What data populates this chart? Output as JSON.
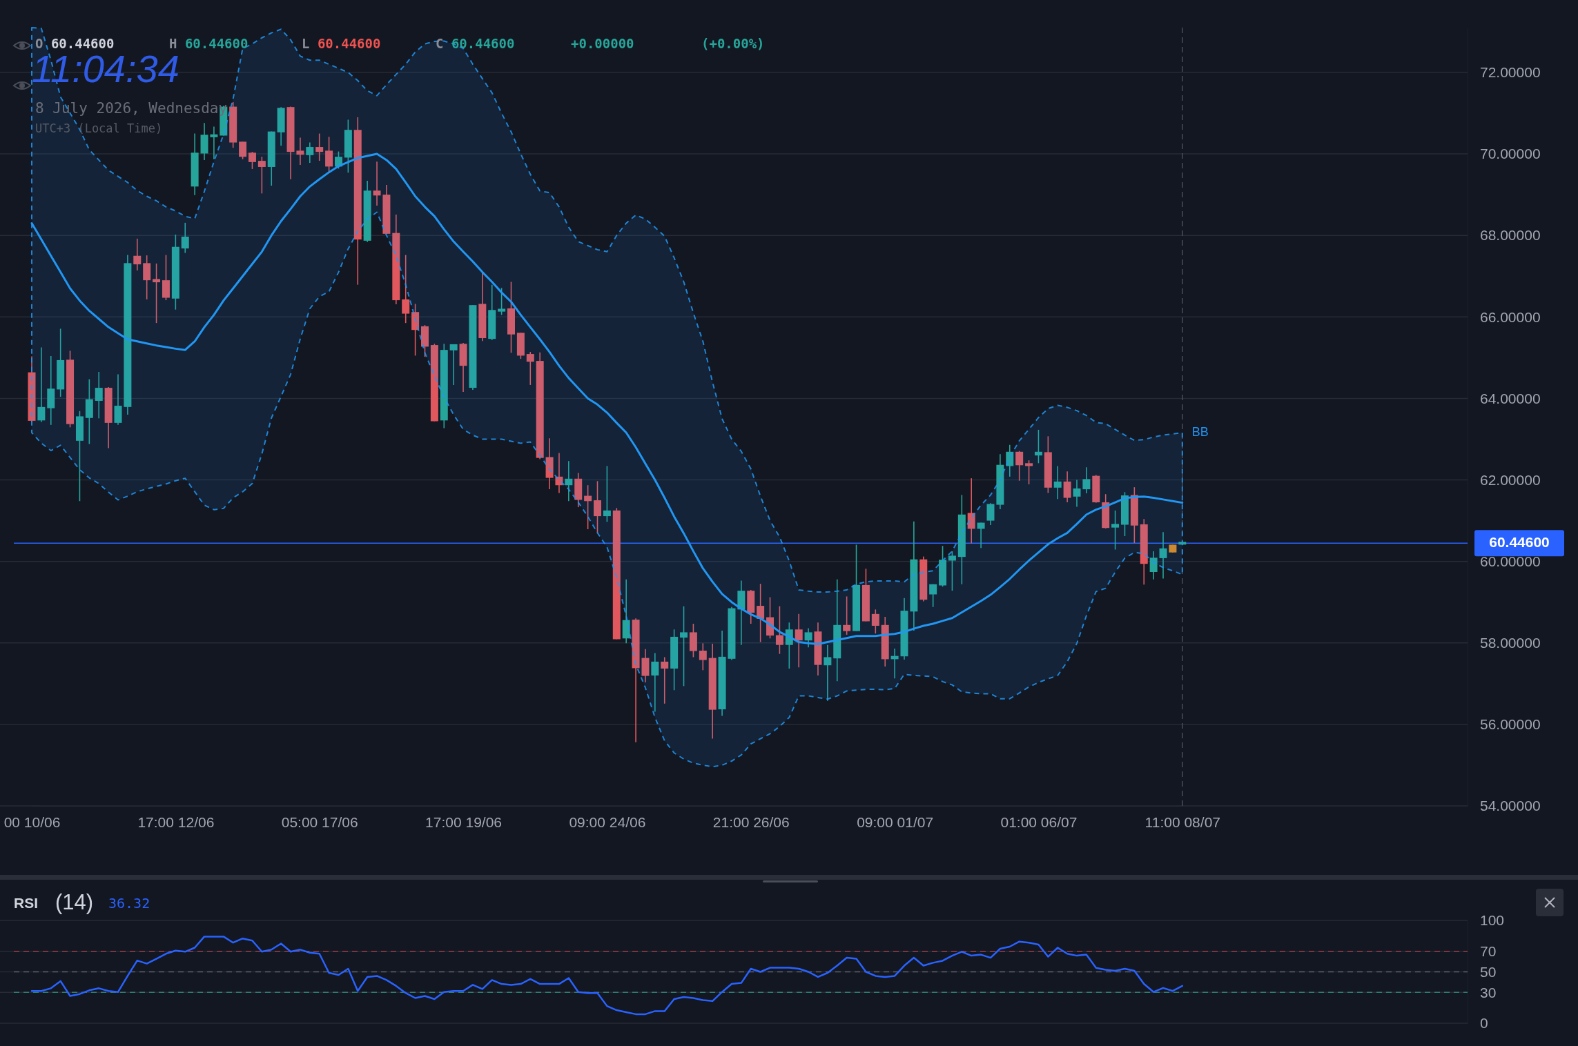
{
  "chart_data": [
    {
      "type": "candlestick",
      "categories": [
        "00 10/06",
        null,
        null,
        null,
        null,
        null,
        null,
        null,
        null,
        null,
        null,
        null,
        null,
        null,
        null,
        "17:00 12/06",
        null,
        null,
        null,
        null,
        null,
        null,
        null,
        null,
        null,
        null,
        null,
        null,
        null,
        null,
        "05:00 17/06",
        null,
        null,
        null,
        null,
        null,
        null,
        null,
        null,
        null,
        null,
        null,
        null,
        null,
        null,
        "17:00 19/06",
        null,
        null,
        null,
        null,
        null,
        null,
        null,
        null,
        null,
        null,
        null,
        null,
        null,
        null,
        "09:00 24/06",
        null,
        null,
        null,
        null,
        null,
        null,
        null,
        null,
        null,
        null,
        null,
        null,
        null,
        null,
        "21:00 26/06",
        null,
        null,
        null,
        null,
        null,
        null,
        null,
        null,
        null,
        null,
        null,
        null,
        null,
        null,
        "09:00 01/07",
        null,
        null,
        null,
        null,
        null,
        null,
        null,
        null,
        null,
        null,
        null,
        null,
        null,
        null,
        "01:00 06/07",
        null,
        null,
        null,
        null,
        null,
        null,
        null,
        null,
        null,
        null,
        null,
        null,
        null,
        null,
        "11:00 08/07"
      ],
      "ohlc": [
        [
          64.64,
          65.03,
          63.42,
          63.45
        ],
        [
          63.46,
          65.25,
          63.42,
          63.79
        ],
        [
          63.76,
          65.04,
          63.35,
          64.24
        ],
        [
          64.22,
          65.71,
          64.04,
          64.94
        ],
        [
          64.95,
          65.17,
          63.29,
          63.37
        ],
        [
          62.96,
          63.69,
          61.48,
          63.56
        ],
        [
          63.52,
          64.47,
          62.88,
          63.98
        ],
        [
          63.94,
          64.65,
          63.51,
          64.26
        ],
        [
          64.26,
          64.28,
          62.78,
          63.4
        ],
        [
          63.4,
          64.59,
          63.35,
          63.82
        ],
        [
          63.79,
          67.52,
          63.6,
          67.32
        ],
        [
          67.5,
          67.92,
          67.14,
          67.29
        ],
        [
          67.32,
          67.51,
          66.43,
          66.9
        ],
        [
          66.93,
          67.31,
          65.85,
          66.85
        ],
        [
          66.9,
          67.52,
          66.41,
          66.47
        ],
        [
          66.45,
          68.02,
          66.18,
          67.72
        ],
        [
          67.68,
          68.31,
          67.57,
          67.97
        ],
        [
          69.2,
          70.5,
          68.99,
          70.03
        ],
        [
          70.01,
          70.76,
          69.85,
          70.47
        ],
        [
          70.41,
          70.67,
          69.87,
          70.48
        ],
        [
          70.45,
          71.18,
          70.45,
          71.16
        ],
        [
          71.16,
          71.27,
          70.15,
          70.28
        ],
        [
          70.3,
          70.3,
          69.87,
          69.93
        ],
        [
          70.03,
          70.05,
          69.63,
          69.8
        ],
        [
          69.83,
          69.93,
          69.03,
          69.68
        ],
        [
          69.68,
          70.55,
          69.22,
          70.55
        ],
        [
          70.53,
          71.15,
          70.2,
          71.13
        ],
        [
          71.15,
          71.16,
          69.38,
          70.05
        ],
        [
          70.08,
          70.4,
          69.73,
          69.98
        ],
        [
          69.97,
          70.28,
          69.78,
          70.17
        ],
        [
          70.17,
          70.5,
          69.83,
          70.05
        ],
        [
          70.08,
          70.42,
          69.54,
          69.69
        ],
        [
          69.69,
          70.06,
          69.64,
          69.93
        ],
        [
          69.91,
          70.84,
          69.54,
          70.59
        ],
        [
          70.59,
          70.9,
          66.79,
          67.9
        ],
        [
          67.87,
          69.34,
          67.84,
          69.1
        ],
        [
          69.1,
          69.81,
          68.73,
          68.98
        ],
        [
          69.0,
          69.24,
          68.04,
          68.04
        ],
        [
          68.06,
          68.51,
          66.31,
          66.41
        ],
        [
          66.43,
          67.52,
          65.85,
          66.08
        ],
        [
          66.12,
          66.32,
          65.05,
          65.68
        ],
        [
          65.77,
          65.8,
          65.02,
          65.27
        ],
        [
          65.31,
          65.34,
          63.44,
          63.44
        ],
        [
          63.46,
          65.34,
          63.27,
          65.19
        ],
        [
          65.18,
          65.33,
          64.33,
          65.33
        ],
        [
          65.34,
          65.36,
          64.16,
          64.8
        ],
        [
          64.26,
          66.29,
          64.21,
          66.29
        ],
        [
          66.32,
          67.1,
          65.41,
          65.48
        ],
        [
          65.46,
          66.79,
          65.43,
          66.17
        ],
        [
          66.13,
          66.71,
          66.05,
          66.2
        ],
        [
          66.21,
          66.86,
          65.12,
          65.57
        ],
        [
          65.61,
          65.61,
          64.97,
          65.05
        ],
        [
          65.09,
          65.14,
          64.33,
          64.9
        ],
        [
          64.92,
          65.13,
          62.51,
          62.54
        ],
        [
          62.56,
          63.02,
          61.77,
          62.05
        ],
        [
          62.08,
          62.66,
          61.68,
          61.87
        ],
        [
          61.87,
          62.46,
          61.48,
          62.03
        ],
        [
          62.03,
          62.17,
          61.33,
          61.51
        ],
        [
          61.61,
          61.87,
          60.79,
          61.48
        ],
        [
          61.5,
          61.97,
          60.69,
          61.11
        ],
        [
          61.11,
          62.34,
          60.97,
          61.25
        ],
        [
          61.25,
          61.31,
          58.09,
          58.09
        ],
        [
          58.11,
          59.56,
          57.99,
          58.56
        ],
        [
          58.57,
          58.6,
          55.56,
          57.38
        ],
        [
          57.63,
          57.85,
          57.03,
          57.19
        ],
        [
          57.2,
          57.75,
          56.31,
          57.54
        ],
        [
          57.54,
          57.65,
          56.51,
          57.37
        ],
        [
          57.37,
          58.33,
          56.84,
          58.15
        ],
        [
          58.13,
          58.9,
          56.94,
          58.26
        ],
        [
          58.26,
          58.47,
          57.65,
          57.8
        ],
        [
          57.81,
          57.99,
          57.33,
          57.58
        ],
        [
          57.63,
          57.98,
          55.65,
          56.36
        ],
        [
          56.37,
          58.3,
          56.21,
          57.66
        ],
        [
          57.61,
          58.88,
          57.58,
          58.85
        ],
        [
          58.82,
          59.53,
          57.95,
          59.28
        ],
        [
          59.28,
          59.3,
          58.47,
          58.74
        ],
        [
          58.91,
          59.45,
          58.02,
          58.59
        ],
        [
          58.63,
          59.12,
          58.11,
          58.18
        ],
        [
          58.19,
          58.9,
          57.73,
          57.95
        ],
        [
          57.95,
          58.5,
          57.37,
          58.33
        ],
        [
          58.33,
          58.71,
          57.4,
          58.06
        ],
        [
          58.06,
          58.36,
          57.89,
          58.26
        ],
        [
          58.28,
          58.5,
          57.2,
          57.46
        ],
        [
          57.45,
          57.95,
          56.58,
          57.65
        ],
        [
          57.62,
          59.56,
          57.06,
          58.44
        ],
        [
          58.44,
          59.14,
          58.2,
          58.29
        ],
        [
          58.29,
          60.41,
          58.29,
          59.42
        ],
        [
          59.42,
          59.82,
          58.53,
          58.53
        ],
        [
          58.71,
          58.82,
          58.23,
          58.42
        ],
        [
          58.44,
          58.64,
          57.42,
          57.6
        ],
        [
          57.6,
          57.86,
          57.13,
          57.68
        ],
        [
          57.67,
          59.1,
          57.59,
          58.79
        ],
        [
          58.77,
          60.98,
          58.3,
          60.05
        ],
        [
          60.05,
          60.12,
          59.02,
          59.06
        ],
        [
          59.19,
          59.44,
          58.88,
          59.44
        ],
        [
          59.41,
          60.38,
          59.38,
          60.04
        ],
        [
          60.02,
          60.25,
          59.28,
          60.14
        ],
        [
          60.11,
          61.63,
          59.44,
          61.15
        ],
        [
          61.19,
          62.04,
          60.44,
          60.8
        ],
        [
          60.8,
          60.95,
          60.33,
          60.95
        ],
        [
          61.0,
          61.43,
          60.89,
          61.41
        ],
        [
          61.39,
          62.63,
          61.28,
          62.37
        ],
        [
          62.34,
          62.86,
          62.08,
          62.69
        ],
        [
          62.69,
          62.71,
          61.98,
          62.36
        ],
        [
          62.41,
          62.48,
          61.89,
          62.34
        ],
        [
          62.6,
          63.23,
          62.41,
          62.69
        ],
        [
          62.68,
          63.07,
          61.68,
          61.81
        ],
        [
          61.81,
          62.34,
          61.53,
          61.96
        ],
        [
          61.96,
          62.21,
          61.45,
          61.56
        ],
        [
          61.59,
          62.0,
          61.34,
          61.79
        ],
        [
          61.77,
          62.31,
          61.67,
          62.02
        ],
        [
          62.1,
          62.12,
          61.44,
          61.45
        ],
        [
          61.45,
          61.65,
          60.81,
          60.82
        ],
        [
          60.83,
          61.25,
          60.29,
          60.92
        ],
        [
          60.9,
          61.7,
          60.62,
          61.62
        ],
        [
          61.63,
          61.82,
          60.45,
          60.88
        ],
        [
          60.91,
          61.04,
          59.43,
          59.94
        ],
        [
          59.74,
          60.25,
          59.56,
          60.09
        ],
        [
          60.08,
          60.72,
          59.58,
          60.32
        ],
        [
          60.22,
          60.41,
          60.22,
          60.41
        ],
        [
          60.446,
          60.446,
          60.446,
          60.446
        ]
      ],
      "colors": [
        "#e0585e",
        "#26a69a",
        "#26a69a",
        "#26a69a",
        "#e0585e",
        "#26a69a",
        "#26a69a",
        "#26a69a",
        "#e0585e",
        "#26a69a",
        "#26a69a",
        "#e0585e",
        "#e0585e",
        "#e0585e",
        "#e0585e",
        "#26a69a",
        "#26a69a",
        "#26a69a",
        "#26a69a",
        "#26a69a",
        "#26a69a",
        "#e0585e",
        "#e0585e",
        "#e0585e",
        "#e0585e",
        "#26a69a",
        "#26a69a",
        "#e0585e",
        "#e0585e",
        "#26a69a",
        "#e0585e",
        "#e0585e",
        "#26a69a",
        "#26a69a",
        "#e0585e",
        "#26a69a",
        "#e0585e",
        "#e0585e",
        "#e0585e",
        "#e0585e",
        "#e0585e",
        "#e0585e",
        "#e0585e",
        "#26a69a",
        "#26a69a",
        "#e0585e",
        "#26a69a",
        "#e0585e",
        "#26a69a",
        "#26a69a",
        "#e0585e",
        "#e0585e",
        "#e0585e",
        "#e0585e",
        "#e0585e",
        "#e0585e",
        "#26a69a",
        "#e0585e",
        "#e0585e",
        "#e0585e",
        "#26a69a",
        "#e0585e",
        "#26a69a",
        "#e0585e",
        "#e0585e",
        "#26a69a",
        "#e0585e",
        "#26a69a",
        "#26a69a",
        "#e0585e",
        "#e0585e",
        "#e0585e",
        "#26a69a",
        "#26a69a",
        "#26a69a",
        "#e0585e",
        "#e0585e",
        "#e0585e",
        "#e0585e",
        "#26a69a",
        "#e0585e",
        "#26a69a",
        "#e0585e",
        "#26a69a",
        "#26a69a",
        "#e0585e",
        "#26a69a",
        "#e0585e",
        "#e0585e",
        "#e0585e",
        "#26a69a",
        "#26a69a",
        "#26a69a",
        "#e0585e",
        "#26a69a",
        "#26a69a",
        "#26a69a",
        "#26a69a",
        "#e0585e",
        "#26a69a",
        "#26a69a",
        "#26a69a",
        "#26a69a",
        "#e0585e",
        "#e0585e",
        "#26a69a",
        "#e0585e",
        "#26a69a",
        "#e0585e",
        "#26a69a",
        "#26a69a",
        "#e0585e",
        "#e0585e",
        "#26a69a",
        "#26a69a",
        "#e0585e",
        "#e0585e",
        "#26a69a",
        "#26a69a",
        "#e08a1e",
        "#26a69a"
      ],
      "series": [
        {
          "name": "BB",
          "type": "line",
          "color": "#2196f3",
          "values": [
            68.3,
            67.9,
            67.5,
            67.1,
            66.7,
            66.4,
            66.15,
            65.95,
            65.75,
            65.6,
            65.45,
            65.4,
            65.35,
            65.3,
            65.26,
            65.22,
            65.19,
            65.4,
            65.75,
            66.05,
            66.4,
            66.7,
            67.0,
            67.3,
            67.6,
            68.0,
            68.35,
            68.65,
            68.96,
            69.2,
            69.38,
            69.55,
            69.7,
            69.8,
            69.9,
            69.95,
            70.0,
            69.85,
            69.63,
            69.3,
            68.96,
            68.7,
            68.47,
            68.15,
            67.85,
            67.6,
            67.36,
            67.1,
            66.86,
            66.6,
            66.37,
            66.05,
            65.75,
            65.45,
            65.14,
            64.8,
            64.5,
            64.25,
            64.0,
            63.85,
            63.65,
            63.4,
            63.16,
            62.8,
            62.4,
            62.0,
            61.56,
            61.1,
            60.69,
            60.25,
            59.83,
            59.5,
            59.2,
            59.0,
            58.84,
            58.7,
            58.6,
            58.45,
            58.27,
            58.15,
            58.02,
            57.99,
            57.97,
            58.02,
            58.07,
            58.12,
            58.17,
            58.17,
            58.17,
            58.2,
            58.22,
            58.27,
            58.35,
            58.42,
            58.47,
            58.54,
            58.61,
            58.75,
            58.89,
            59.03,
            59.18,
            59.37,
            59.57,
            59.8,
            60.02,
            60.22,
            60.42,
            60.57,
            60.7,
            60.92,
            61.15,
            61.27,
            61.35,
            61.45,
            61.55,
            61.58,
            61.59,
            61.56,
            61.52,
            61.48,
            61.44
          ],
          "upper": [
            73.1,
            73.08,
            72.3,
            71.4,
            71.0,
            70.6,
            70.1,
            69.85,
            69.6,
            69.45,
            69.3,
            69.1,
            68.96,
            68.85,
            68.7,
            68.6,
            68.47,
            68.41,
            69.08,
            69.81,
            70.48,
            71.35,
            72.59,
            72.7,
            72.85,
            72.97,
            73.06,
            72.8,
            72.4,
            72.3,
            72.3,
            72.2,
            72.1,
            72.0,
            71.8,
            71.55,
            71.43,
            71.7,
            71.95,
            72.2,
            72.5,
            72.7,
            72.76,
            72.77,
            72.7,
            72.59,
            72.2,
            71.85,
            71.5,
            71.0,
            70.54,
            70.0,
            69.5,
            69.09,
            69.05,
            68.7,
            68.2,
            67.85,
            67.75,
            67.65,
            67.6,
            68.0,
            68.3,
            68.5,
            68.4,
            68.2,
            67.98,
            67.45,
            66.86,
            66.1,
            65.4,
            64.4,
            63.5,
            63.0,
            62.7,
            62.27,
            61.6,
            61.0,
            60.6,
            60.01,
            59.3,
            59.27,
            59.25,
            59.25,
            59.27,
            59.3,
            59.44,
            59.5,
            59.52,
            59.52,
            59.52,
            59.5,
            59.68,
            59.74,
            59.77,
            60.02,
            60.25,
            60.7,
            61.07,
            61.38,
            61.63,
            62.0,
            62.56,
            62.96,
            63.24,
            63.53,
            63.75,
            63.83,
            63.78,
            63.7,
            63.58,
            63.41,
            63.38,
            63.24,
            63.1,
            62.97,
            62.99,
            63.05,
            63.1,
            63.13,
            63.16
          ],
          "lower": [
            63.16,
            62.9,
            62.72,
            62.85,
            62.55,
            62.25,
            62.05,
            61.91,
            61.7,
            61.51,
            61.6,
            61.71,
            61.78,
            61.84,
            61.9,
            61.98,
            62.04,
            61.71,
            61.38,
            61.27,
            61.3,
            61.56,
            61.71,
            61.91,
            62.64,
            63.52,
            64.05,
            64.59,
            65.46,
            66.2,
            66.5,
            66.62,
            67.1,
            67.67,
            68.1,
            68.4,
            68.57,
            68.0,
            67.5,
            66.79,
            65.95,
            65.12,
            64.55,
            64.03,
            63.6,
            63.24,
            63.1,
            63.0,
            63.0,
            63.0,
            62.95,
            62.9,
            62.93,
            62.6,
            62.26,
            62.0,
            61.77,
            61.45,
            61.1,
            60.7,
            60.35,
            59.6,
            58.66,
            57.47,
            56.9,
            56.17,
            55.6,
            55.3,
            55.15,
            55.05,
            55.0,
            54.96,
            55.0,
            55.1,
            55.25,
            55.52,
            55.65,
            55.77,
            55.95,
            56.17,
            56.7,
            56.7,
            56.66,
            56.62,
            56.7,
            56.82,
            56.84,
            56.86,
            56.86,
            56.85,
            56.88,
            57.23,
            57.2,
            57.19,
            57.17,
            57.05,
            56.97,
            56.8,
            56.77,
            56.75,
            56.75,
            56.63,
            56.63,
            56.77,
            56.92,
            57.03,
            57.12,
            57.2,
            57.54,
            57.99,
            58.67,
            59.26,
            59.34,
            59.74,
            60.08,
            60.22,
            60.19,
            59.97,
            59.85,
            59.77,
            59.68
          ]
        }
      ],
      "ylim": [
        54,
        73.1
      ],
      "yticks": [
        {
          "value": 54,
          "label": "54.00000"
        },
        {
          "value": 56,
          "label": "56.00000"
        },
        {
          "value": 58,
          "label": "58.00000"
        },
        {
          "value": 60,
          "label": "60.00000"
        },
        {
          "value": 62,
          "label": "62.00000"
        },
        {
          "value": 64,
          "label": "64.00000"
        },
        {
          "value": 66,
          "label": "66.00000"
        },
        {
          "value": 68,
          "label": "68.00000"
        },
        {
          "value": 70,
          "label": "70.00000"
        },
        {
          "value": 72,
          "label": "72.00000"
        }
      ],
      "grid": "y",
      "ref_lines": [
        {
          "axis": "y",
          "value": 60.446,
          "label": "60.44600",
          "color": "#2962ff"
        },
        {
          "axis": "x",
          "value": "11:00 08/07",
          "line_style": "dashed",
          "color": "#4a4e59"
        }
      ],
      "annotations": [
        "O 60.44600",
        "H 60.44600",
        "L 60.44600",
        "C 60.44600",
        "+0.00000",
        "(+0.00%)",
        "11:04:34",
        "8 July 2026, Wednesday",
        "UTC+3 (Local Time)"
      ]
    },
    {
      "type": "line",
      "title": "RSI",
      "subtitle": "(14)",
      "categories": [
        null,
        null,
        null,
        null,
        null,
        null,
        null,
        null,
        null,
        null,
        null,
        null,
        null,
        null,
        null,
        null,
        null,
        null,
        null,
        null,
        null,
        null,
        null,
        null,
        null,
        null,
        null,
        null,
        null,
        null,
        null,
        null,
        null,
        null,
        null,
        null,
        null,
        null,
        null,
        null,
        null,
        null,
        null,
        null,
        null,
        null,
        null,
        null,
        null,
        null,
        null,
        null,
        null,
        null,
        null,
        null,
        null,
        null,
        null,
        null,
        null,
        null,
        null,
        null,
        null,
        null,
        null,
        null,
        null,
        null,
        null,
        null,
        null,
        null,
        null,
        null,
        null,
        null,
        null,
        null,
        null,
        null,
        null,
        null,
        null,
        null,
        null,
        null,
        null,
        null,
        null,
        null,
        null,
        null,
        null,
        null,
        null,
        null,
        null,
        null,
        null,
        null,
        null,
        null,
        null,
        null,
        null,
        null,
        null,
        null,
        null,
        null,
        null,
        null,
        null,
        null,
        null,
        null,
        null,
        null,
        null
      ],
      "series": [
        {
          "color": "#2962ff",
          "values": [
            31.4,
            31.4,
            34,
            41,
            26.5,
            28.4,
            32,
            34,
            31.4,
            30.4,
            46,
            61,
            58,
            62.7,
            67.6,
            70.6,
            69.6,
            73.5,
            84.3,
            84.3,
            84.3,
            78.4,
            82.4,
            80.4,
            69.6,
            71.6,
            77.5,
            69.6,
            71.6,
            68.6,
            67.6,
            49,
            47,
            53,
            31.4,
            45,
            46,
            42,
            36.3,
            29.4,
            24.5,
            26.5,
            23.5,
            30.4,
            31.4,
            31.4,
            37.3,
            33.3,
            42,
            38.2,
            37.3,
            38.2,
            43,
            38.2,
            38.2,
            38.2,
            44,
            30.4,
            29.4,
            29.4,
            16.7,
            12.7,
            10.8,
            8.8,
            8.8,
            11.8,
            11.8,
            23.5,
            25.5,
            24.5,
            22.5,
            21.6,
            30.4,
            38.2,
            39.2,
            53,
            50,
            54,
            54,
            54,
            53,
            50,
            45,
            49,
            56,
            63.7,
            62.7,
            50,
            46,
            45,
            46,
            56,
            63.7,
            56,
            58.8,
            60.8,
            65.7,
            69.6,
            65.7,
            66.7,
            63.7,
            72.5,
            74.5,
            79.4,
            78.4,
            76.5,
            64.7,
            73.5,
            67.6,
            65.7,
            66.7,
            53.9,
            52,
            51,
            53,
            51,
            38.2,
            30.4,
            34.3,
            31.4,
            36.32
          ]
        }
      ],
      "ylim": [
        0,
        100
      ],
      "yticks": [
        0,
        30,
        50,
        70,
        100
      ],
      "grid": "y",
      "tick_labels": "y",
      "ref_lines": [
        {
          "axis": "y",
          "value": 70,
          "color": "#9b3d48",
          "line_style": "dashed"
        },
        {
          "axis": "y",
          "value": 50,
          "color": "#5d606b",
          "line_style": "dashed"
        },
        {
          "axis": "y",
          "value": 30,
          "color": "#2e7d74",
          "line_style": "dashed"
        }
      ],
      "annotations": [
        "36.32"
      ]
    }
  ]
}
